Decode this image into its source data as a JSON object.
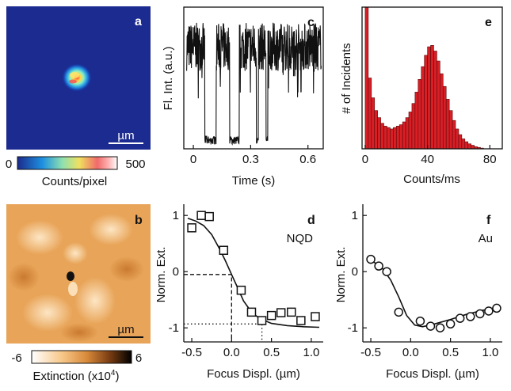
{
  "chart_data": [
    {
      "panel": "a",
      "type": "heatmap",
      "scale_bar_label": "µm",
      "colorbar": {
        "min_label": "0",
        "max_label": "500",
        "label": "Counts/pixel",
        "min": 0,
        "max": 500
      }
    },
    {
      "panel": "b",
      "type": "heatmap",
      "scale_bar_label": "µm",
      "colorbar": {
        "min_label": "-6",
        "max_label": "6",
        "label": "Extinction (x10",
        "label_sup": "4",
        "label_end": ")",
        "min": -6,
        "max": 6
      }
    },
    {
      "panel": "c",
      "type": "line",
      "xlabel": "Time (s)",
      "ylabel": "Fl. Int. (a.u.)",
      "xlim": [
        -0.05,
        0.68
      ],
      "xticks": [
        0,
        0.3,
        0.6
      ],
      "xtick_labels": [
        "0",
        "0.3",
        "0.6"
      ],
      "ylim": [
        0,
        1
      ],
      "high_level": 0.72,
      "low_level": 0.06,
      "off_intervals": [
        [
          0.06,
          0.12
        ],
        [
          0.19,
          0.24
        ],
        [
          0.33,
          0.34
        ],
        [
          0.38,
          0.39
        ]
      ]
    },
    {
      "panel": "e",
      "type": "bar",
      "xlabel": "Counts/ms",
      "ylabel": "# of Incidents",
      "xlim": [
        -2,
        88
      ],
      "ylim": [
        0,
        1
      ],
      "xticks": [
        0,
        40,
        80
      ],
      "xtick_labels": [
        "0",
        "40",
        "80"
      ],
      "bin_width": 2,
      "bins_start": [
        0,
        2,
        4,
        6,
        8,
        10,
        12,
        14,
        16,
        18,
        20,
        22,
        24,
        26,
        28,
        30,
        32,
        34,
        36,
        38,
        40,
        42,
        44,
        46,
        48,
        50,
        52,
        54,
        56,
        58,
        60,
        62,
        64,
        66,
        68,
        70,
        72,
        74
      ],
      "values": [
        1.0,
        0.5,
        0.36,
        0.27,
        0.22,
        0.18,
        0.16,
        0.15,
        0.14,
        0.15,
        0.16,
        0.17,
        0.19,
        0.22,
        0.26,
        0.32,
        0.4,
        0.49,
        0.58,
        0.66,
        0.72,
        0.73,
        0.69,
        0.62,
        0.53,
        0.44,
        0.35,
        0.27,
        0.2,
        0.14,
        0.1,
        0.07,
        0.05,
        0.035,
        0.025,
        0.015,
        0.01,
        0.005
      ]
    },
    {
      "panel": "d",
      "type": "scatter",
      "annotation": "NQD",
      "xlabel": "Focus Displ. (µm)",
      "ylabel": "Norm. Ext.",
      "xlim": [
        -0.6,
        1.15
      ],
      "ylim": [
        -1.25,
        1.2
      ],
      "xticks": [
        -0.5,
        0,
        0.5,
        1
      ],
      "xtick_labels": [
        "-0.5",
        "0.0",
        "0.5",
        "1.0"
      ],
      "yticks": [
        -1,
        0,
        1
      ],
      "ytick_labels": [
        "-1",
        "0",
        "1"
      ],
      "points_x": [
        -0.5,
        -0.38,
        -0.28,
        -0.1,
        0.12,
        0.25,
        0.38,
        0.5,
        0.62,
        0.75,
        0.87,
        1.05
      ],
      "points_y": [
        0.78,
        1.0,
        0.98,
        0.38,
        -0.33,
        -0.72,
        -0.87,
        -0.78,
        -0.73,
        -0.72,
        -0.87,
        -0.8
      ],
      "fit_x": [
        -0.55,
        -0.45,
        -0.35,
        -0.25,
        -0.15,
        -0.08,
        0,
        0.08,
        0.15,
        0.25,
        0.35,
        0.5,
        0.7,
        0.9,
        1.1
      ],
      "fit_y": [
        0.95,
        0.9,
        0.82,
        0.66,
        0.4,
        0.2,
        -0.05,
        -0.3,
        -0.52,
        -0.72,
        -0.83,
        -0.92,
        -0.96,
        -0.98,
        -0.99
      ],
      "guides": [
        {
          "style": "dashed",
          "points": [
            [
              -0.6,
              -0.05
            ],
            [
              0,
              -0.05
            ],
            [
              0,
              -1.25
            ]
          ]
        },
        {
          "style": "dotted",
          "points": [
            [
              -0.6,
              -0.93
            ],
            [
              0.38,
              -0.93
            ],
            [
              0.38,
              -1.25
            ]
          ]
        }
      ]
    },
    {
      "panel": "f",
      "type": "scatter",
      "annotation": "Au",
      "xlabel": "Focus Displ. (µm)",
      "ylabel": "Norm. Ext.",
      "xlim": [
        -0.6,
        1.15
      ],
      "ylim": [
        -1.25,
        1.2
      ],
      "xticks": [
        -0.5,
        0,
        0.5,
        1
      ],
      "xtick_labels": [
        "-0.5",
        "0.0",
        "0.5",
        "1.0"
      ],
      "yticks": [
        -1,
        0,
        1
      ],
      "ytick_labels": [
        "-1",
        "0",
        "1"
      ],
      "points_x": [
        -0.5,
        -0.4,
        -0.3,
        -0.15,
        0.12,
        0.25,
        0.37,
        0.5,
        0.62,
        0.75,
        0.87,
        0.98,
        1.08
      ],
      "points_y": [
        0.22,
        0.1,
        0.0,
        -0.72,
        -0.88,
        -0.97,
        -1.0,
        -0.93,
        -0.83,
        -0.8,
        -0.75,
        -0.7,
        -0.65
      ],
      "fit_x": [
        -0.55,
        -0.45,
        -0.35,
        -0.25,
        -0.15,
        -0.05,
        0.05,
        0.15,
        0.3,
        0.5,
        0.7,
        0.9,
        1.1
      ],
      "fit_y": [
        0.22,
        0.16,
        0.05,
        -0.15,
        -0.45,
        -0.78,
        -0.95,
        -0.98,
        -0.93,
        -0.85,
        -0.76,
        -0.69,
        -0.63
      ]
    }
  ]
}
